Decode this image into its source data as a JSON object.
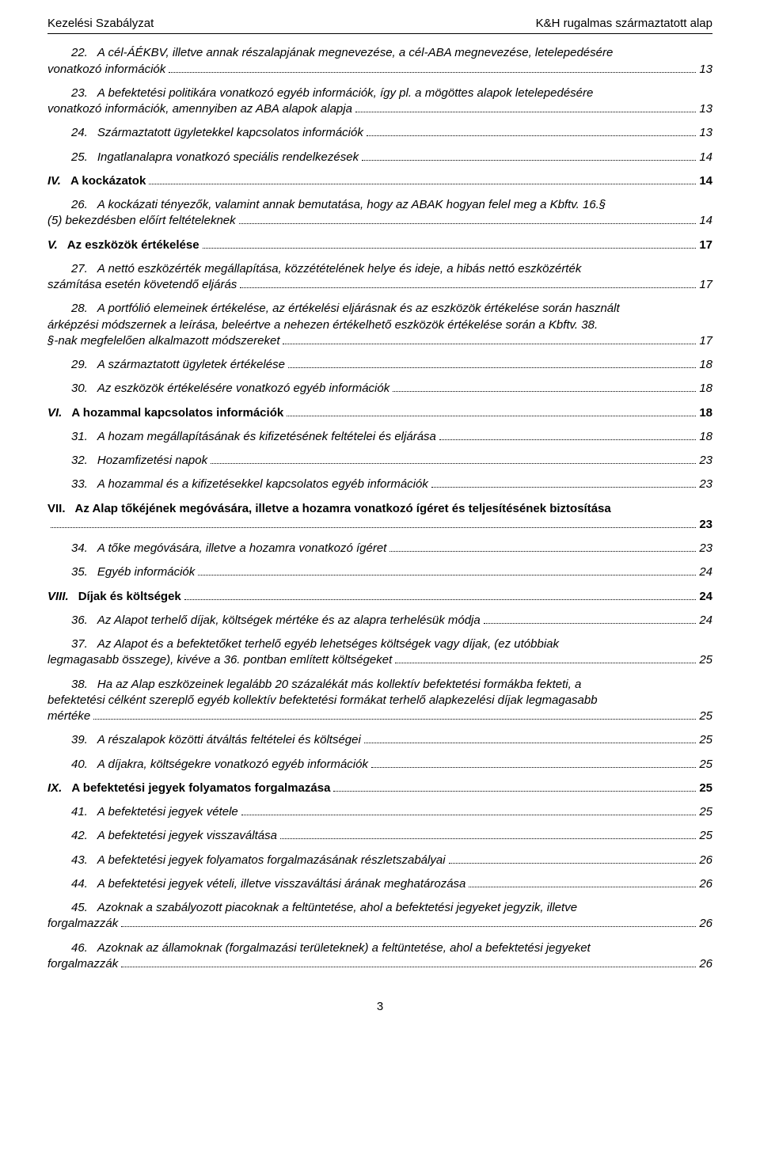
{
  "header": {
    "left": "Kezelési Szabályzat",
    "right": "K&H rugalmas származtatott alap"
  },
  "colors": {
    "text": "#000000",
    "background": "#ffffff",
    "border": "#000000"
  },
  "typography": {
    "font_family": "Arial",
    "base_size_pt": 11,
    "bold_weight": 700,
    "italic": true
  },
  "page_number": "3",
  "toc": [
    {
      "level": "sub",
      "style": "italic",
      "num": "22.",
      "text_lines": [
        "A cél-ÁÉKBV, illetve annak részalapjának megnevezése, a cél-ABA megnevezése, letelepedésére",
        "vonatkozó információk"
      ],
      "page": "13",
      "hanging_num": true
    },
    {
      "level": "sub",
      "style": "italic",
      "num": "23.",
      "text_lines": [
        "A befektetési politikára vonatkozó egyéb információk, így pl. a mögöttes alapok letelepedésére",
        "vonatkozó információk, amennyiben az ABA alapok alapja"
      ],
      "page": "13",
      "hanging_num": true
    },
    {
      "level": "sub",
      "style": "italic",
      "num": "24.",
      "text_lines": [
        "Származtatott ügyletekkel kapcsolatos információk"
      ],
      "page": "13"
    },
    {
      "level": "sub",
      "style": "italic",
      "num": "25.",
      "text_lines": [
        "Ingatlanalapra vonatkozó speciális rendelkezések"
      ],
      "page": "14"
    },
    {
      "level": "top",
      "style": "bold",
      "num": "IV.",
      "text_lines": [
        "A kockázatok"
      ],
      "page": "14"
    },
    {
      "level": "sub",
      "style": "italic",
      "num": "26.",
      "text_lines": [
        "A kockázati tényezők, valamint annak bemutatása, hogy az ABAK hogyan felel meg a Kbftv. 16.§",
        "(5) bekezdésben előírt feltételeknek"
      ],
      "page": "14",
      "hanging_num": true
    },
    {
      "level": "top",
      "style": "bold",
      "num": "V.",
      "text_lines": [
        "Az eszközök értékelése"
      ],
      "page": "17"
    },
    {
      "level": "sub",
      "style": "italic",
      "num": "27.",
      "text_lines": [
        "A nettó eszközérték megállapítása, közzétételének helye és ideje, a hibás nettó eszközérték",
        "számítása esetén követendő eljárás"
      ],
      "page": "17",
      "hanging_num": true
    },
    {
      "level": "sub",
      "style": "italic",
      "num": "28.",
      "text_lines": [
        "A portfólió elemeinek értékelése, az értékelési eljárásnak és az eszközök értékelése során használt",
        "árképzési módszernek a leírása, beleértve a nehezen értékelhető eszközök értékelése során a Kbftv. 38.",
        "§-nak megfelelően alkalmazott módszereket"
      ],
      "page": "17",
      "hanging_num": true
    },
    {
      "level": "sub",
      "style": "italic",
      "num": "29.",
      "text_lines": [
        "A származtatott ügyletek értékelése"
      ],
      "page": "18"
    },
    {
      "level": "sub",
      "style": "italic",
      "num": "30.",
      "text_lines": [
        "Az eszközök értékelésére vonatkozó egyéb információk"
      ],
      "page": "18"
    },
    {
      "level": "top",
      "style": "bold",
      "num": "VI.",
      "text_lines": [
        "A hozammal kapcsolatos információk"
      ],
      "page": "18"
    },
    {
      "level": "sub",
      "style": "italic",
      "num": "31.",
      "text_lines": [
        "A hozam megállapításának és kifizetésének feltételei és eljárása"
      ],
      "page": "18"
    },
    {
      "level": "sub",
      "style": "italic",
      "num": "32.",
      "text_lines": [
        "Hozamfizetési napok"
      ],
      "page": "23"
    },
    {
      "level": "sub",
      "style": "italic",
      "num": "33.",
      "text_lines": [
        "A hozammal és a kifizetésekkel kapcsolatos egyéb információk"
      ],
      "page": "23"
    },
    {
      "level": "top",
      "style": "bold",
      "num": "VII.",
      "text_lines": [
        "Az Alap tőkéjének megóvására, illetve a hozamra vonatkozó ígéret és teljesítésének biztosítása",
        ""
      ],
      "page": "23",
      "hanging_num": true
    },
    {
      "level": "sub",
      "style": "italic",
      "num": "34.",
      "text_lines": [
        "A tőke megóvására, illetve a hozamra vonatkozó ígéret"
      ],
      "page": "23"
    },
    {
      "level": "sub",
      "style": "italic",
      "num": "35.",
      "text_lines": [
        "Egyéb információk"
      ],
      "page": "24"
    },
    {
      "level": "top",
      "style": "bold",
      "num": "VIII.",
      "text_lines": [
        "Díjak és költségek"
      ],
      "page": "24"
    },
    {
      "level": "sub",
      "style": "italic",
      "num": "36.",
      "text_lines": [
        "Az Alapot terhelő díjak, költségek mértéke és az alapra terhelésük módja"
      ],
      "page": "24"
    },
    {
      "level": "sub",
      "style": "italic",
      "num": "37.",
      "text_lines": [
        "Az Alapot és a befektetőket terhelő egyéb lehetséges költségek vagy díjak, (ez utóbbiak",
        "legmagasabb összege), kivéve a 36. pontban említett költségeket"
      ],
      "page": "25",
      "hanging_num": true
    },
    {
      "level": "sub",
      "style": "italic",
      "num": "38.",
      "text_lines": [
        "Ha az Alap eszközeinek legalább 20 százalékát más kollektív befektetési formákba fekteti, a",
        "befektetési célként szereplő egyéb kollektív befektetési formákat terhelő alapkezelési díjak legmagasabb",
        "mértéke"
      ],
      "page": "25",
      "hanging_num": true
    },
    {
      "level": "sub",
      "style": "italic",
      "num": "39.",
      "text_lines": [
        "A részalapok közötti átváltás feltételei és költségei"
      ],
      "page": "25"
    },
    {
      "level": "sub",
      "style": "italic",
      "num": "40.",
      "text_lines": [
        "A díjakra, költségekre vonatkozó egyéb információk"
      ],
      "page": "25"
    },
    {
      "level": "top",
      "style": "bold",
      "num": "IX.",
      "text_lines": [
        "A befektetési jegyek folyamatos forgalmazása"
      ],
      "page": "25"
    },
    {
      "level": "sub",
      "style": "italic",
      "num": "41.",
      "text_lines": [
        "A befektetési jegyek vétele"
      ],
      "page": "25"
    },
    {
      "level": "sub",
      "style": "italic",
      "num": "42.",
      "text_lines": [
        "A befektetési jegyek visszaváltása"
      ],
      "page": "25"
    },
    {
      "level": "sub",
      "style": "italic",
      "num": "43.",
      "text_lines": [
        "A befektetési jegyek folyamatos forgalmazásának részletszabályai"
      ],
      "page": "26"
    },
    {
      "level": "sub",
      "style": "italic",
      "num": "44.",
      "text_lines": [
        "A befektetési jegyek vételi, illetve visszaváltási árának meghatározása"
      ],
      "page": "26"
    },
    {
      "level": "sub",
      "style": "italic",
      "num": "45.",
      "text_lines": [
        "Azoknak a szabályozott piacoknak a feltüntetése, ahol a befektetési jegyeket jegyzik, illetve",
        "forgalmazzák"
      ],
      "page": "26",
      "hanging_num": true
    },
    {
      "level": "sub",
      "style": "italic",
      "num": "46.",
      "text_lines": [
        "Azoknak az államoknak (forgalmazási területeknek) a feltüntetése, ahol a befektetési jegyeket",
        "forgalmazzák"
      ],
      "page": "26",
      "hanging_num": true
    }
  ]
}
